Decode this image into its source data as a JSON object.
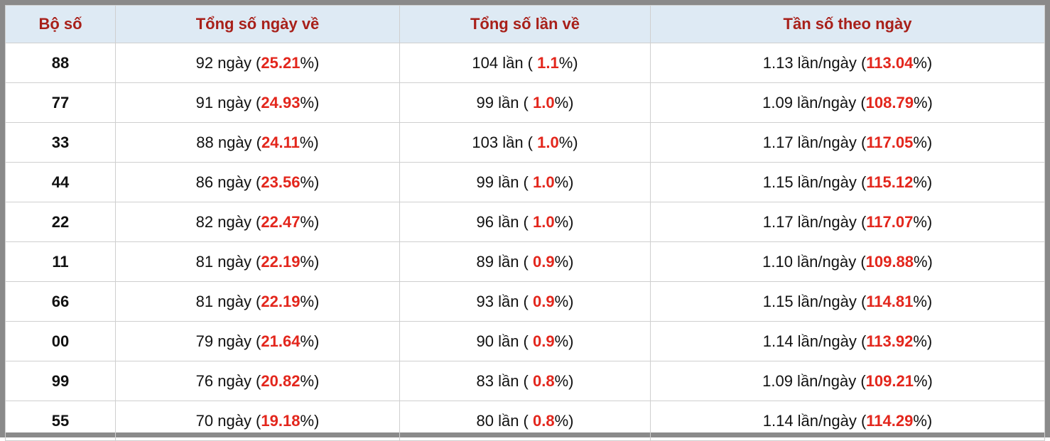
{
  "table": {
    "headers": [
      "Bộ số",
      "Tổng số ngày về",
      "Tổng số lần về",
      "Tần số theo ngày"
    ],
    "rows": [
      [
        "88",
        [
          "92 ngày (",
          "25.21",
          "%)"
        ],
        [
          "104 lần ( ",
          "1.1",
          "%)"
        ],
        [
          "1.13 lần/ngày (",
          "113.04",
          "%)"
        ]
      ],
      [
        "77",
        [
          "91 ngày (",
          "24.93",
          "%)"
        ],
        [
          "99 lần ( ",
          "1.0",
          "%)"
        ],
        [
          "1.09 lần/ngày (",
          "108.79",
          "%)"
        ]
      ],
      [
        "33",
        [
          "88 ngày (",
          "24.11",
          "%)"
        ],
        [
          "103 lần ( ",
          "1.0",
          "%)"
        ],
        [
          "1.17 lần/ngày (",
          "117.05",
          "%)"
        ]
      ],
      [
        "44",
        [
          "86 ngày (",
          "23.56",
          "%)"
        ],
        [
          "99 lần ( ",
          "1.0",
          "%)"
        ],
        [
          "1.15 lần/ngày (",
          "115.12",
          "%)"
        ]
      ],
      [
        "22",
        [
          "82 ngày (",
          "22.47",
          "%)"
        ],
        [
          "96 lần ( ",
          "1.0",
          "%)"
        ],
        [
          "1.17 lần/ngày (",
          "117.07",
          "%)"
        ]
      ],
      [
        "11",
        [
          "81 ngày (",
          "22.19",
          "%)"
        ],
        [
          "89 lần ( ",
          "0.9",
          "%)"
        ],
        [
          "1.10 lần/ngày (",
          "109.88",
          "%)"
        ]
      ],
      [
        "66",
        [
          "81 ngày (",
          "22.19",
          "%)"
        ],
        [
          "93 lần ( ",
          "0.9",
          "%)"
        ],
        [
          "1.15 lần/ngày (",
          "114.81",
          "%)"
        ]
      ],
      [
        "00",
        [
          "79 ngày (",
          "21.64",
          "%)"
        ],
        [
          "90 lần ( ",
          "0.9",
          "%)"
        ],
        [
          "1.14 lần/ngày (",
          "113.92",
          "%)"
        ]
      ],
      [
        "99",
        [
          "76 ngày (",
          "20.82",
          "%)"
        ],
        [
          "83 lần ( ",
          "0.8",
          "%)"
        ],
        [
          "1.09 lần/ngày (",
          "109.21",
          "%)"
        ]
      ],
      [
        "55",
        [
          "70 ngày (",
          "19.18",
          "%)"
        ],
        [
          "80 lần ( ",
          "0.8",
          "%)"
        ],
        [
          "1.14 lần/ngày (",
          "114.29",
          "%)"
        ]
      ]
    ]
  }
}
